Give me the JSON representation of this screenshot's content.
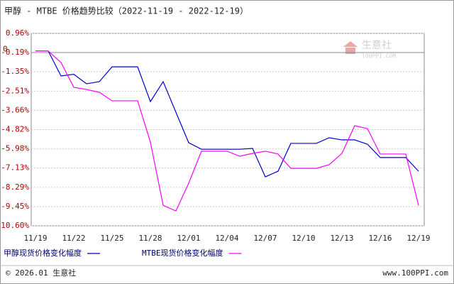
{
  "chart_data": {
    "type": "line",
    "title": "甲醇 - MTBE 价格趋势比较（2022-11-19 - 2022-12-19）",
    "categories": [
      "11/19",
      null,
      null,
      "11/22",
      null,
      null,
      "11/25",
      null,
      null,
      "11/28",
      null,
      null,
      "12/01",
      null,
      null,
      "12/04",
      null,
      null,
      "12/07",
      null,
      null,
      "12/10",
      null,
      null,
      "12/13",
      null,
      null,
      "12/16",
      null,
      null,
      "12/19"
    ],
    "series": [
      {
        "name": "甲醇现货价格变化幅度",
        "color": "#0000cc",
        "values": [
          -0.1,
          -0.1,
          -1.6,
          -1.5,
          -2.07,
          -1.94,
          -1.05,
          -1.05,
          -1.05,
          -3.14,
          -1.94,
          -3.78,
          -5.61,
          -6.0,
          -6.0,
          -6.0,
          -6.0,
          -5.95,
          -7.66,
          -7.32,
          -5.65,
          -5.65,
          -5.65,
          -5.31,
          -5.44,
          -5.44,
          -5.7,
          -6.5,
          -6.5,
          -6.5,
          -7.32
        ]
      },
      {
        "name": "MTBE现货价格变化幅度",
        "color": "#ff00ff",
        "values": [
          -0.1,
          -0.1,
          -0.79,
          -2.28,
          -2.41,
          -2.58,
          -3.09,
          -3.09,
          -3.09,
          -5.57,
          -9.37,
          -9.71,
          -8.04,
          -6.12,
          -6.12,
          -6.12,
          -6.42,
          -6.25,
          -6.12,
          -6.29,
          -7.15,
          -7.15,
          -7.15,
          -6.93,
          -6.25,
          -4.59,
          -4.76,
          -6.29,
          -6.29,
          -6.29,
          -9.37
        ]
      }
    ],
    "ylim": [
      -10.6,
      0.96
    ],
    "yticks": [
      {
        "value": 0.96,
        "label": "0.96%"
      },
      {
        "value": 0,
        "label": "0"
      },
      {
        "value": -0.19,
        "label": "-0.19%"
      },
      {
        "value": -1.35,
        "label": "-1.35%"
      },
      {
        "value": -2.51,
        "label": "-2.51%"
      },
      {
        "value": -3.66,
        "label": "-3.66%"
      },
      {
        "value": -4.82,
        "label": "-4.82%"
      },
      {
        "value": -5.98,
        "label": "-5.98%"
      },
      {
        "value": -7.13,
        "label": "-7.13%"
      },
      {
        "value": -8.29,
        "label": "-8.29%"
      },
      {
        "value": -9.45,
        "label": "-9.45%"
      },
      {
        "value": -10.6,
        "label": "-10.60%"
      }
    ],
    "grid": true,
    "watermark": {
      "name": "生意社",
      "site": "100PPI.COM"
    },
    "copyright": "© 2026.01 生意社",
    "website": "www.100PPI.com"
  }
}
